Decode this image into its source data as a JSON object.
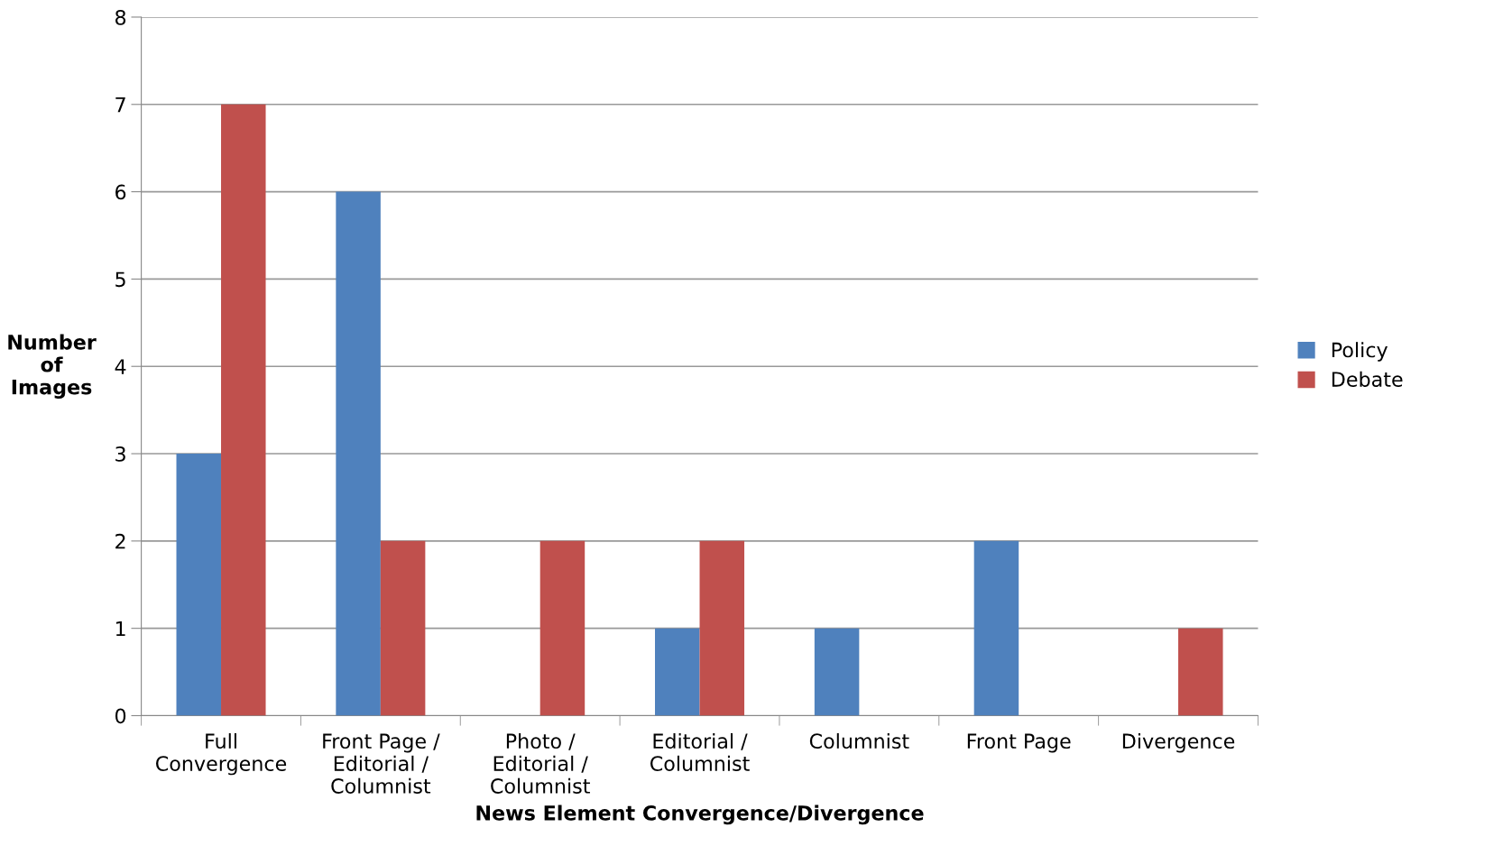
{
  "chart_data": {
    "type": "bar",
    "xlabel": "News Element Convergence/Divergence",
    "ylabel": "Number\nof\nImages",
    "categories": [
      "Full\nConvergence",
      "Front Page /\nEditorial /\nColumnist",
      "Photo /\nEditorial /\nColumnist",
      "Editorial /\nColumnist",
      "Columnist",
      "Front Page",
      "Divergence"
    ],
    "series": [
      {
        "name": "Policy",
        "color": "#4f81bd",
        "values": [
          3,
          6,
          0,
          1,
          1,
          2,
          0
        ]
      },
      {
        "name": "Debate",
        "color": "#c0504d",
        "values": [
          7,
          2,
          2,
          2,
          0,
          0,
          1
        ]
      }
    ],
    "ylim": [
      0,
      8
    ],
    "yticks": [
      0,
      1,
      2,
      3,
      4,
      5,
      6,
      7,
      8
    ],
    "grid": "y",
    "legend": "right"
  }
}
